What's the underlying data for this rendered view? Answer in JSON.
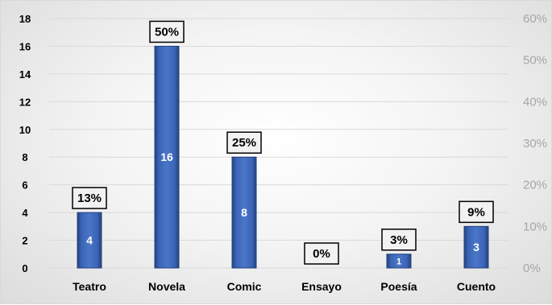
{
  "chart_data": {
    "type": "bar",
    "categories": [
      "Teatro",
      "Novela",
      "Comic",
      "Ensayo",
      "Poesía",
      "Cuento"
    ],
    "values": [
      4,
      16,
      8,
      0,
      1,
      3
    ],
    "percent_labels": [
      "13%",
      "50%",
      "25%",
      "0%",
      "3%",
      "9%"
    ],
    "ylim": [
      0,
      18
    ],
    "y_ticks": [
      0,
      2,
      4,
      6,
      8,
      10,
      12,
      14,
      16,
      18
    ],
    "y2lim": [
      0,
      60
    ],
    "y2_ticks": [
      "0%",
      "10%",
      "20%",
      "30%",
      "40%",
      "50%",
      "60%"
    ],
    "grid": true,
    "colors": {
      "bar": "#3b65b6",
      "bar_edge": "#23427f",
      "grid": "#d9d9d9"
    }
  }
}
